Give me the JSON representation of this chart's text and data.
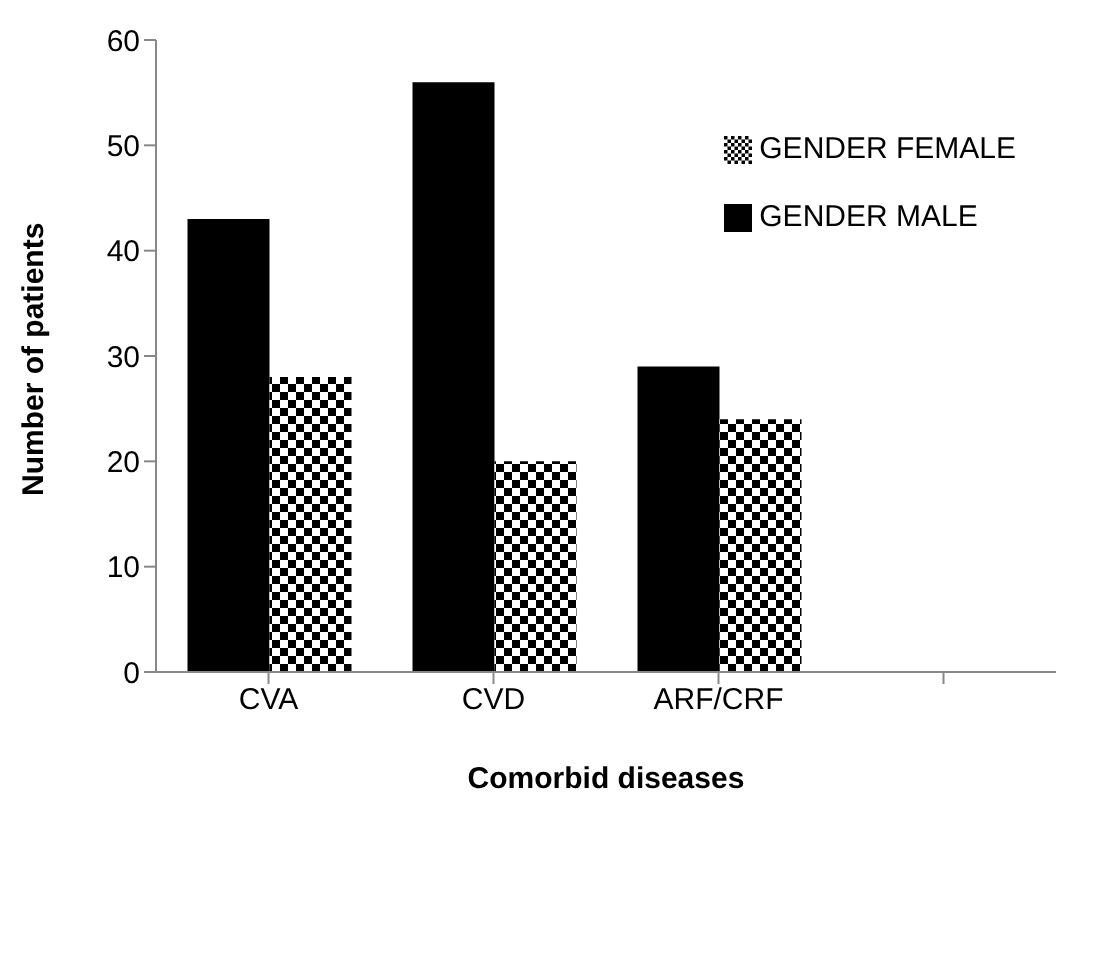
{
  "chart_data": {
    "type": "bar",
    "xlabel": "Comorbid diseases",
    "ylabel": "Number of patients",
    "categories": [
      "CVA",
      "CVD",
      "ARF/CRF",
      null
    ],
    "series": [
      {
        "name": "GENDER MALE",
        "color": "#000000",
        "values": [
          43,
          56,
          29,
          null
        ]
      },
      {
        "name": "GENDER FEMALE",
        "color": "#000000",
        "values": [
          28,
          20,
          24,
          null
        ]
      }
    ],
    "ylim": [
      0,
      60
    ],
    "yticks": [
      0,
      10,
      20,
      30,
      40,
      50,
      60
    ],
    "legend": "top right",
    "grid": false
  }
}
